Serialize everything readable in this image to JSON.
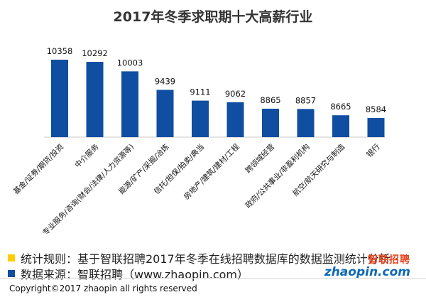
{
  "chart_data": {
    "type": "bar",
    "title": "2017年冬季求职期十大高薪行业",
    "categories": [
      "基金/证券/期货/投资",
      "中介服务",
      "专业服务/咨询(财会/法律/人力资源等)",
      "能源/矿产/采掘/冶炼",
      "信托/担保/拍卖/典当",
      "房地产/建筑/建材/工程",
      "跨领域经营",
      "政府/公共事业/非盈利机构",
      "航空/航天研究与制造",
      "银行"
    ],
    "values": [
      10358,
      10292,
      10003,
      9439,
      9111,
      9062,
      8865,
      8857,
      8665,
      8584
    ],
    "bar_color": "#0f4ea1"
  },
  "legend": {
    "rule_label": "统计规则：基于智联招聘2017年冬季在线招聘数据库的数据监测统计分析",
    "source_label": "数据来源：智联招聘（www.zhaopin.com）",
    "rule_color": "#ffcc00",
    "source_color": "#0f4ea1"
  },
  "logo": {
    "cn": "智联招聘",
    "en": "zhaopin.com"
  },
  "copyright": "Copyright©2017 zhaopin all rights reserved"
}
